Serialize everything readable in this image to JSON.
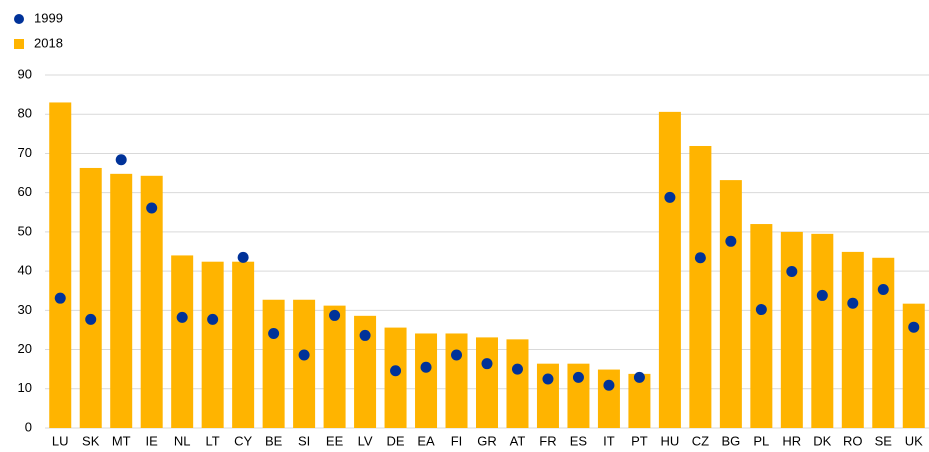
{
  "chart_data": {
    "type": "bar",
    "categories": [
      "LU",
      "SK",
      "MT",
      "IE",
      "NL",
      "LT",
      "CY",
      "BE",
      "SI",
      "EE",
      "LV",
      "DE",
      "EA",
      "FI",
      "GR",
      "AT",
      "FR",
      "ES",
      "IT",
      "PT",
      "HU",
      "CZ",
      "BG",
      "PL",
      "HR",
      "DK",
      "RO",
      "SE",
      "UK"
    ],
    "series": [
      {
        "name": "1999",
        "type": "dot",
        "color": "#003299",
        "values": [
          33.1,
          27.7,
          68.4,
          56.1,
          28.2,
          27.7,
          43.5,
          24.1,
          18.6,
          28.7,
          23.6,
          14.6,
          15.5,
          18.6,
          16.4,
          15.0,
          12.5,
          12.9,
          10.9,
          12.9,
          58.8,
          43.4,
          47.6,
          30.2,
          39.9,
          33.8,
          31.8,
          35.3,
          25.7
        ]
      },
      {
        "name": "2018",
        "type": "bar",
        "color": "#ffb400",
        "values": [
          83.0,
          66.3,
          64.8,
          64.3,
          44.0,
          42.4,
          42.4,
          32.7,
          32.7,
          31.2,
          28.6,
          25.6,
          24.1,
          24.1,
          23.1,
          22.6,
          16.4,
          16.4,
          14.9,
          13.8,
          80.6,
          71.9,
          63.2,
          52.0,
          50.0,
          49.5,
          44.9,
          43.4,
          31.7
        ]
      }
    ],
    "ylim": [
      0,
      90
    ],
    "yticks": [
      0,
      10,
      20,
      30,
      40,
      50,
      60,
      70,
      80,
      90
    ],
    "grid": true
  }
}
